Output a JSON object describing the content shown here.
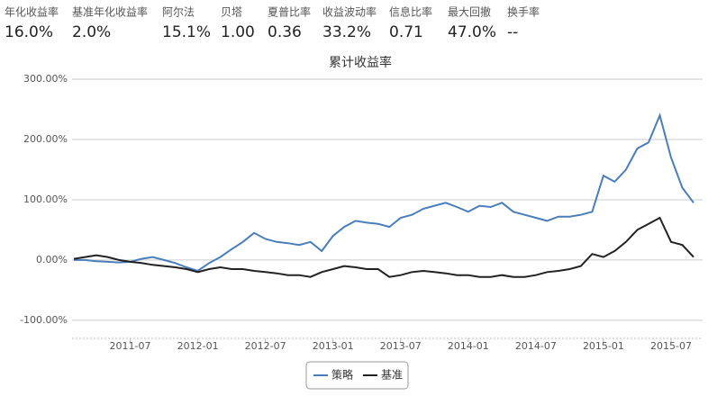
{
  "stats": [
    {
      "label": "年化收益率",
      "value": "16.0%"
    },
    {
      "label": "基准年化收益率",
      "value": "2.0%"
    },
    {
      "label": "阿尔法",
      "value": "15.1%"
    },
    {
      "label": "贝塔",
      "value": "1.00"
    },
    {
      "label": "夏普比率",
      "value": "0.36"
    },
    {
      "label": "收益波动率",
      "value": "33.2%"
    },
    {
      "label": "信息比率",
      "value": "0.71"
    },
    {
      "label": "最大回撤",
      "value": "47.0%"
    },
    {
      "label": "换手率",
      "value": "--"
    }
  ],
  "chart_data": {
    "type": "line",
    "title": "累计收益率",
    "x": [
      "2011-02",
      "2011-03",
      "2011-04",
      "2011-05",
      "2011-06",
      "2011-07",
      "2011-08",
      "2011-09",
      "2011-10",
      "2011-11",
      "2011-12",
      "2012-01",
      "2012-02",
      "2012-03",
      "2012-04",
      "2012-05",
      "2012-06",
      "2012-07",
      "2012-08",
      "2012-09",
      "2012-10",
      "2012-11",
      "2012-12",
      "2013-01",
      "2013-02",
      "2013-03",
      "2013-04",
      "2013-05",
      "2013-06",
      "2013-07",
      "2013-08",
      "2013-09",
      "2013-10",
      "2013-11",
      "2013-12",
      "2014-01",
      "2014-02",
      "2014-03",
      "2014-04",
      "2014-05",
      "2014-06",
      "2014-07",
      "2014-08",
      "2014-09",
      "2014-10",
      "2014-11",
      "2014-12",
      "2015-01",
      "2015-02",
      "2015-03",
      "2015-04",
      "2015-05",
      "2015-06",
      "2015-07",
      "2015-08",
      "2015-09"
    ],
    "xticks": [
      "2011-07",
      "2012-01",
      "2012-07",
      "2013-01",
      "2013-07",
      "2014-01",
      "2014-07",
      "2015-01",
      "2015-07"
    ],
    "series": [
      {
        "name": "策略",
        "color": "#4a7ebb",
        "values": [
          0,
          0,
          -2,
          -3,
          -4,
          -3,
          2,
          5,
          0,
          -5,
          -12,
          -18,
          -5,
          5,
          18,
          30,
          45,
          35,
          30,
          28,
          25,
          30,
          15,
          40,
          55,
          65,
          62,
          60,
          55,
          70,
          75,
          85,
          90,
          95,
          88,
          80,
          90,
          88,
          95,
          80,
          75,
          70,
          65,
          72,
          72,
          75,
          80,
          140,
          130,
          150,
          185,
          195,
          240,
          170,
          120,
          95
        ]
      },
      {
        "name": "基准",
        "color": "#222222",
        "values": [
          2,
          5,
          8,
          5,
          0,
          -3,
          -5,
          -8,
          -10,
          -12,
          -15,
          -20,
          -15,
          -12,
          -15,
          -15,
          -18,
          -20,
          -22,
          -25,
          -25,
          -28,
          -20,
          -15,
          -10,
          -12,
          -15,
          -15,
          -28,
          -25,
          -20,
          -18,
          -20,
          -22,
          -25,
          -25,
          -28,
          -28,
          -25,
          -28,
          -28,
          -25,
          -20,
          -18,
          -15,
          -10,
          10,
          5,
          15,
          30,
          50,
          60,
          70,
          30,
          25,
          5
        ]
      }
    ],
    "ylim": [
      -130,
      320
    ],
    "yticks": [
      {
        "value": -100,
        "label": "-100.00%"
      },
      {
        "value": 0,
        "label": "0.00%"
      },
      {
        "value": 100,
        "label": "100.00%"
      },
      {
        "value": 200,
        "label": "200.00%"
      },
      {
        "value": 300,
        "label": "300.00%"
      }
    ],
    "grid": true
  }
}
